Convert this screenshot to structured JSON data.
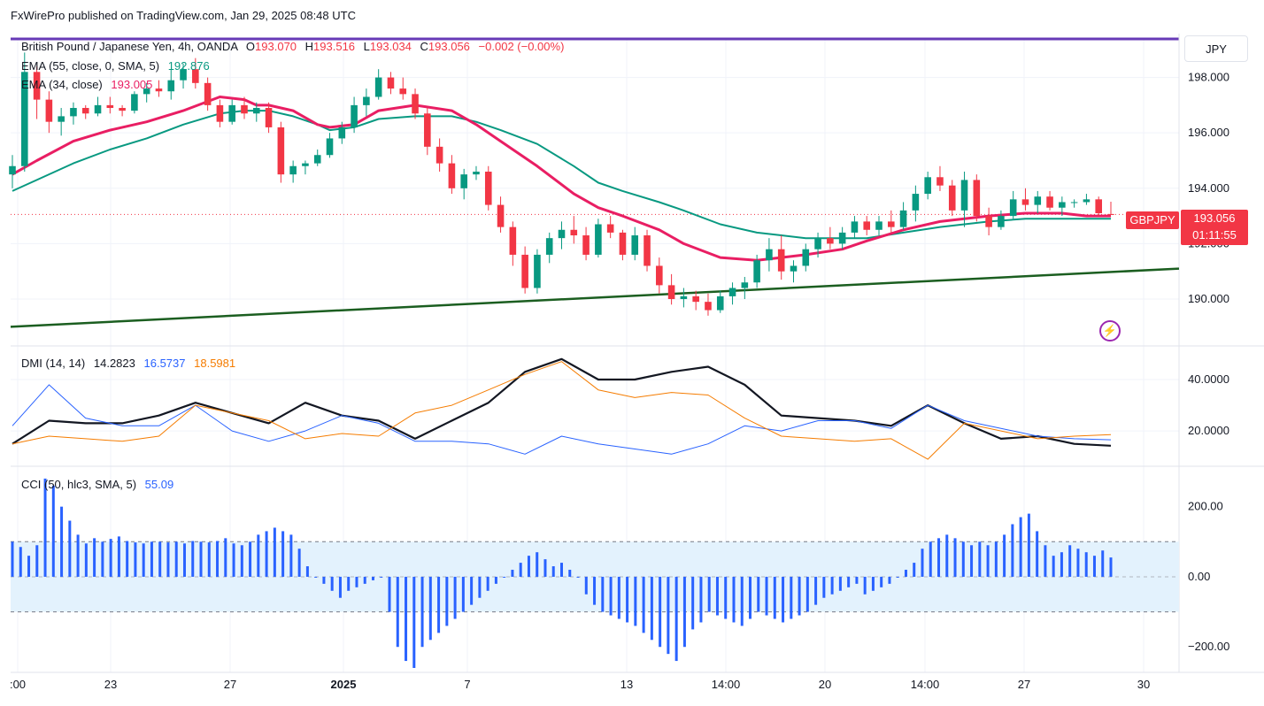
{
  "header": {
    "text": "FxWirePro published on TradingView.com, Jan 29, 2025 08:48 UTC"
  },
  "main": {
    "symbol": "British Pound / Japanese Yen, 4h, OANDA",
    "o_label": "O",
    "o": "193.070",
    "h_label": "H",
    "h": "193.516",
    "l_label": "L",
    "l": "193.034",
    "c_label": "C",
    "c": "193.056",
    "change": "−0.002 (−0.00%)",
    "ema55_label": "EMA (55, close, 0, SMA, 5)",
    "ema55_value": "192.876",
    "ema34_label": "EMA (34, close)",
    "ema34_value": "193.005",
    "currency": "JPY",
    "symbol_tag": "GBPJPY",
    "price_tag": "193.056",
    "countdown": "01:11:55",
    "y_ticks": [
      "198.000",
      "196.000",
      "194.000",
      "192.000",
      "190.000"
    ]
  },
  "dmi": {
    "label": "DMI (14, 14)",
    "adx": "14.2823",
    "plus_di": "16.5737",
    "minus_di": "18.5981",
    "y_ticks": [
      "40.0000",
      "20.0000"
    ]
  },
  "cci": {
    "label": "CCI (50, hlc3, SMA, 5)",
    "value": "55.09",
    "y_ticks": [
      "200.00",
      "0.00",
      "−200.00"
    ]
  },
  "x_ticks": [
    ":00",
    "23",
    "27",
    "2025",
    "7",
    "13",
    "14:00",
    "20",
    "14:00",
    "27",
    "30"
  ],
  "colors": {
    "up": "#089981",
    "down": "#f23645",
    "ema34": "#e91e63",
    "ema55": "#089981",
    "trendline": "#1b5e20",
    "topline": "#673ab7",
    "adx": "#131722",
    "plus_di": "#2962ff",
    "minus_di": "#f57c00",
    "cci_bar": "#2962ff",
    "cci_band": "#e3f2fd"
  },
  "chart_data": [
    {
      "type": "candlestick",
      "title": "British Pound / Japanese Yen, 4h, OANDA",
      "ylim": [
        188.5,
        199.2
      ],
      "series": [
        {
          "name": "EMA (55, close, 0, SMA, 5)",
          "x": [
            0,
            2,
            5,
            8,
            11,
            14,
            17,
            19,
            20,
            21,
            23,
            25,
            26,
            28,
            30,
            33,
            36,
            38,
            40,
            43,
            46,
            48,
            50,
            53,
            55,
            58,
            61,
            63,
            65,
            68,
            70,
            73,
            76,
            78,
            80,
            83,
            86,
            88,
            90
          ],
          "values": [
            193.9,
            194.3,
            194.9,
            195.4,
            195.8,
            196.3,
            196.7,
            196.8,
            196.8,
            196.8,
            196.6,
            196.3,
            196.1,
            196.2,
            196.5,
            196.6,
            196.6,
            196.4,
            196.1,
            195.6,
            194.8,
            194.2,
            193.9,
            193.5,
            193.2,
            192.7,
            192.4,
            192.3,
            192.2,
            192.2,
            192.2,
            192.4,
            192.6,
            192.7,
            192.8,
            192.9,
            192.9,
            192.9,
            192.9
          ]
        },
        {
          "name": "EMA (34, close)",
          "x": [
            0,
            2,
            5,
            8,
            11,
            14,
            17,
            19,
            20,
            21,
            23,
            25,
            26,
            28,
            30,
            33,
            36,
            38,
            40,
            43,
            46,
            48,
            50,
            53,
            55,
            58,
            61,
            63,
            65,
            68,
            70,
            73,
            76,
            78,
            80,
            83,
            86,
            88,
            90
          ],
          "values": [
            194.5,
            195.0,
            195.7,
            196.1,
            196.4,
            196.8,
            197.3,
            197.2,
            197.0,
            197.0,
            196.8,
            196.3,
            196.2,
            196.3,
            196.8,
            197.0,
            196.8,
            196.3,
            195.7,
            194.8,
            193.8,
            193.3,
            193.0,
            192.5,
            192.0,
            191.5,
            191.4,
            191.5,
            191.6,
            191.8,
            192.1,
            192.5,
            192.8,
            192.9,
            193.0,
            193.1,
            193.1,
            193.0,
            193.0
          ]
        }
      ],
      "ohlc": [
        [
          194.5,
          195.2,
          194.0,
          194.8
        ],
        [
          194.8,
          198.9,
          194.6,
          198.2
        ],
        [
          198.2,
          198.4,
          196.5,
          197.2
        ],
        [
          197.2,
          197.5,
          196.0,
          196.4
        ],
        [
          196.4,
          196.9,
          195.9,
          196.6
        ],
        [
          196.6,
          197.1,
          196.3,
          196.9
        ],
        [
          196.9,
          197.0,
          196.5,
          196.7
        ],
        [
          196.7,
          197.3,
          196.6,
          197.0
        ],
        [
          197.0,
          197.3,
          196.7,
          196.9
        ],
        [
          196.9,
          197.0,
          196.6,
          196.8
        ],
        [
          196.8,
          197.5,
          196.7,
          197.4
        ],
        [
          197.4,
          197.8,
          197.1,
          197.6
        ],
        [
          197.6,
          197.9,
          197.3,
          197.5
        ],
        [
          197.5,
          198.3,
          197.2,
          197.9
        ],
        [
          197.9,
          198.5,
          197.6,
          198.3
        ],
        [
          198.3,
          198.7,
          197.6,
          197.8
        ],
        [
          197.8,
          198.0,
          196.8,
          197.0
        ],
        [
          197.0,
          197.2,
          196.2,
          196.4
        ],
        [
          196.4,
          197.2,
          196.3,
          197.0
        ],
        [
          197.0,
          197.3,
          196.5,
          196.7
        ],
        [
          196.7,
          197.1,
          196.4,
          196.9
        ],
        [
          196.9,
          197.1,
          196.0,
          196.2
        ],
        [
          196.2,
          196.4,
          194.2,
          194.5
        ],
        [
          194.5,
          195.0,
          194.2,
          194.8
        ],
        [
          194.8,
          195.0,
          194.5,
          194.9
        ],
        [
          194.9,
          195.4,
          194.8,
          195.2
        ],
        [
          195.2,
          196.0,
          195.1,
          195.8
        ],
        [
          195.8,
          196.4,
          195.6,
          196.2
        ],
        [
          196.2,
          197.3,
          196.0,
          197.0
        ],
        [
          197.0,
          197.6,
          196.6,
          197.3
        ],
        [
          197.3,
          198.3,
          197.2,
          198.0
        ],
        [
          198.0,
          198.2,
          197.4,
          197.6
        ],
        [
          197.6,
          198.0,
          197.2,
          197.4
        ],
        [
          197.4,
          197.6,
          196.5,
          196.7
        ],
        [
          196.7,
          196.9,
          195.2,
          195.5
        ],
        [
          195.5,
          195.8,
          194.6,
          194.9
        ],
        [
          194.9,
          195.2,
          193.8,
          194.0
        ],
        [
          194.0,
          194.7,
          193.6,
          194.5
        ],
        [
          194.5,
          194.8,
          194.3,
          194.6
        ],
        [
          194.6,
          194.8,
          193.2,
          193.4
        ],
        [
          193.4,
          193.7,
          192.4,
          192.6
        ],
        [
          192.6,
          192.8,
          191.2,
          191.6
        ],
        [
          191.6,
          191.9,
          190.2,
          190.4
        ],
        [
          190.4,
          191.8,
          190.2,
          191.6
        ],
        [
          191.6,
          192.4,
          191.3,
          192.2
        ],
        [
          192.2,
          192.8,
          191.8,
          192.5
        ],
        [
          192.5,
          193.0,
          192.0,
          192.3
        ],
        [
          192.3,
          192.6,
          191.4,
          191.6
        ],
        [
          191.6,
          192.9,
          191.5,
          192.7
        ],
        [
          192.7,
          193.0,
          192.2,
          192.4
        ],
        [
          192.4,
          192.5,
          191.4,
          191.6
        ],
        [
          191.6,
          192.6,
          191.4,
          192.3
        ],
        [
          192.3,
          192.5,
          191.0,
          191.2
        ],
        [
          191.2,
          191.5,
          190.2,
          190.5
        ],
        [
          190.5,
          190.9,
          189.8,
          190.0
        ],
        [
          190.0,
          190.4,
          189.7,
          190.1
        ],
        [
          190.1,
          190.3,
          189.6,
          189.9
        ],
        [
          189.9,
          190.2,
          189.4,
          189.6
        ],
        [
          189.6,
          190.3,
          189.5,
          190.1
        ],
        [
          190.1,
          190.6,
          189.8,
          190.4
        ],
        [
          190.4,
          190.8,
          190.0,
          190.6
        ],
        [
          190.6,
          191.6,
          190.4,
          191.4
        ],
        [
          191.4,
          192.2,
          191.0,
          191.8
        ],
        [
          191.8,
          192.3,
          190.7,
          191.0
        ],
        [
          191.0,
          191.4,
          190.6,
          191.2
        ],
        [
          191.2,
          192.0,
          191.0,
          191.8
        ],
        [
          191.8,
          192.4,
          191.5,
          192.2
        ],
        [
          192.2,
          192.6,
          191.8,
          192.0
        ],
        [
          192.0,
          192.6,
          191.8,
          192.4
        ],
        [
          192.4,
          193.0,
          192.2,
          192.8
        ],
        [
          192.8,
          193.0,
          192.3,
          192.5
        ],
        [
          192.5,
          193.0,
          192.3,
          192.8
        ],
        [
          192.8,
          193.2,
          192.4,
          192.6
        ],
        [
          192.6,
          193.5,
          192.5,
          193.2
        ],
        [
          193.2,
          194.1,
          192.8,
          193.8
        ],
        [
          193.8,
          194.6,
          193.6,
          194.4
        ],
        [
          194.4,
          194.8,
          193.9,
          194.1
        ],
        [
          194.1,
          194.3,
          193.0,
          193.2
        ],
        [
          193.2,
          194.6,
          192.6,
          194.3
        ],
        [
          194.3,
          194.5,
          192.8,
          193.0
        ],
        [
          193.0,
          193.3,
          192.3,
          192.6
        ],
        [
          192.6,
          193.2,
          192.5,
          193.0
        ],
        [
          193.0,
          193.9,
          192.9,
          193.6
        ],
        [
          193.6,
          194.0,
          193.2,
          193.4
        ],
        [
          193.4,
          193.9,
          193.1,
          193.7
        ],
        [
          193.7,
          193.9,
          193.2,
          193.3
        ],
        [
          193.3,
          193.7,
          193.0,
          193.5
        ],
        [
          193.5,
          193.6,
          193.3,
          193.5
        ],
        [
          193.5,
          193.8,
          193.4,
          193.6
        ],
        [
          193.6,
          193.7,
          193.0,
          193.1
        ],
        [
          193.07,
          193.516,
          193.034,
          193.056
        ]
      ],
      "trendline": {
        "x": [
          0,
          91
        ],
        "y": [
          189.0,
          191.1
        ]
      },
      "last_price": 193.056
    },
    {
      "type": "line",
      "title": "DMI (14, 14)",
      "ylim": [
        8,
        50
      ],
      "x": [
        0,
        3,
        6,
        9,
        12,
        15,
        18,
        21,
        24,
        27,
        30,
        33,
        36,
        39,
        42,
        45,
        48,
        51,
        54,
        57,
        60,
        63,
        66,
        69,
        72,
        75,
        78,
        81,
        84,
        87,
        90
      ],
      "series": [
        {
          "name": "ADX",
          "values": [
            15,
            24,
            23,
            23,
            26,
            31,
            27,
            23,
            31,
            26,
            24,
            17,
            24,
            31,
            43,
            48,
            40,
            40,
            43,
            45,
            38,
            26,
            25,
            24,
            22,
            30,
            23,
            17,
            18,
            15,
            14.28
          ]
        },
        {
          "name": "+DI",
          "values": [
            22,
            38,
            25,
            22,
            22,
            30,
            20,
            16,
            20,
            26,
            23,
            16,
            16,
            15,
            11,
            18,
            15,
            13,
            11,
            15,
            22,
            20,
            24,
            24,
            21,
            30,
            24,
            21,
            18,
            17,
            16.57
          ]
        },
        {
          "name": "−DI",
          "values": [
            15,
            18,
            17,
            16,
            18,
            30,
            27,
            24,
            17,
            19,
            18,
            27,
            30,
            36,
            42,
            47,
            36,
            33,
            35,
            34,
            25,
            18,
            17,
            16,
            17,
            9,
            23,
            20,
            17,
            18,
            18.6
          ]
        }
      ]
    },
    {
      "type": "bar",
      "title": "CCI (50, hlc3, SMA, 5)",
      "ylim": [
        -260,
        290
      ],
      "bands": [
        100,
        -100
      ],
      "values": [
        100,
        85,
        60,
        90,
        280,
        260,
        200,
        160,
        120,
        95,
        110,
        100,
        108,
        115,
        102,
        98,
        95,
        100,
        100,
        98,
        100,
        95,
        102,
        100,
        98,
        102,
        110,
        95,
        90,
        100,
        120,
        130,
        140,
        130,
        120,
        80,
        30,
        0,
        -20,
        -40,
        -60,
        -40,
        -30,
        -20,
        -10,
        0,
        -100,
        -200,
        -240,
        -260,
        -200,
        -180,
        -160,
        -140,
        -120,
        -100,
        -80,
        -60,
        -40,
        -20,
        0,
        20,
        40,
        60,
        70,
        50,
        30,
        40,
        20,
        0,
        -50,
        -80,
        -100,
        -110,
        -120,
        -130,
        -140,
        -160,
        -180,
        -200,
        -220,
        -240,
        -200,
        -150,
        -130,
        -100,
        -110,
        -120,
        -130,
        -140,
        -120,
        -100,
        -110,
        -120,
        -130,
        -120,
        -110,
        -100,
        -80,
        -60,
        -50,
        -40,
        -30,
        -20,
        -50,
        -40,
        -30,
        -20,
        0,
        20,
        40,
        80,
        100,
        110,
        120,
        110,
        100,
        90,
        100,
        90,
        100,
        120,
        150,
        170,
        180,
        130,
        90,
        60,
        70,
        90,
        80,
        70,
        60,
        75,
        55.09
      ]
    }
  ]
}
